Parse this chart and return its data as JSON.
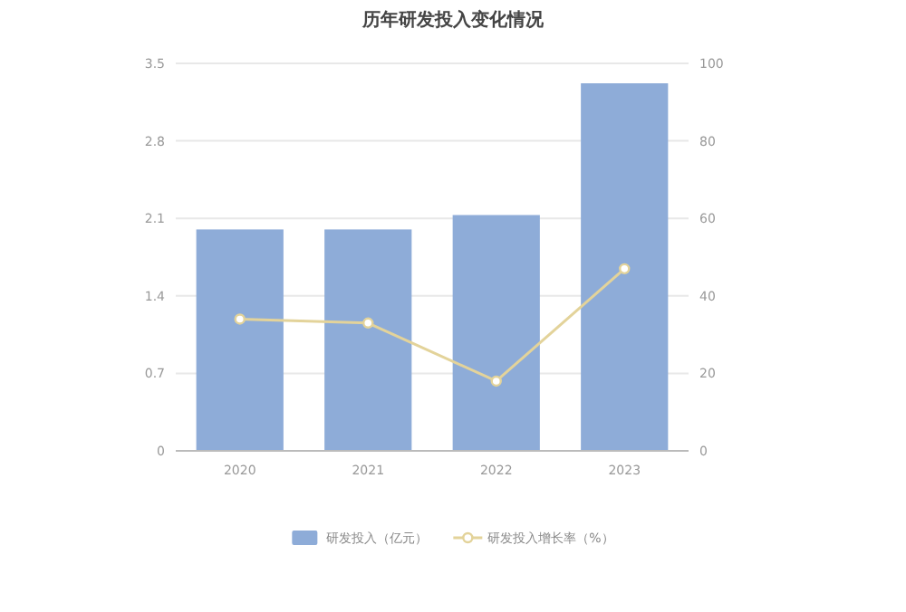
{
  "chart_data": {
    "type": "bar",
    "title": "历年研发投入变化情况",
    "categories": [
      "2020",
      "2021",
      "2022",
      "2023"
    ],
    "series": [
      {
        "name": "研发投入（亿元）",
        "color": "#8eacd8",
        "values": [
          2.0,
          2.0,
          2.13,
          3.32
        ]
      },
      {
        "name": "研发投入增长率（%）",
        "type": "line",
        "axis": "y2",
        "color": "#e3d39a",
        "values": [
          34,
          33,
          18,
          47
        ]
      }
    ],
    "ylim": [
      0,
      3.5
    ],
    "yticks": [
      0,
      0.7,
      1.4,
      2.1,
      2.8,
      3.5
    ],
    "y2lim": [
      0,
      100
    ],
    "y2ticks": [
      0,
      20,
      40,
      60,
      80,
      100
    ],
    "grid": "y",
    "legend": "bottom",
    "marker": "circle"
  }
}
